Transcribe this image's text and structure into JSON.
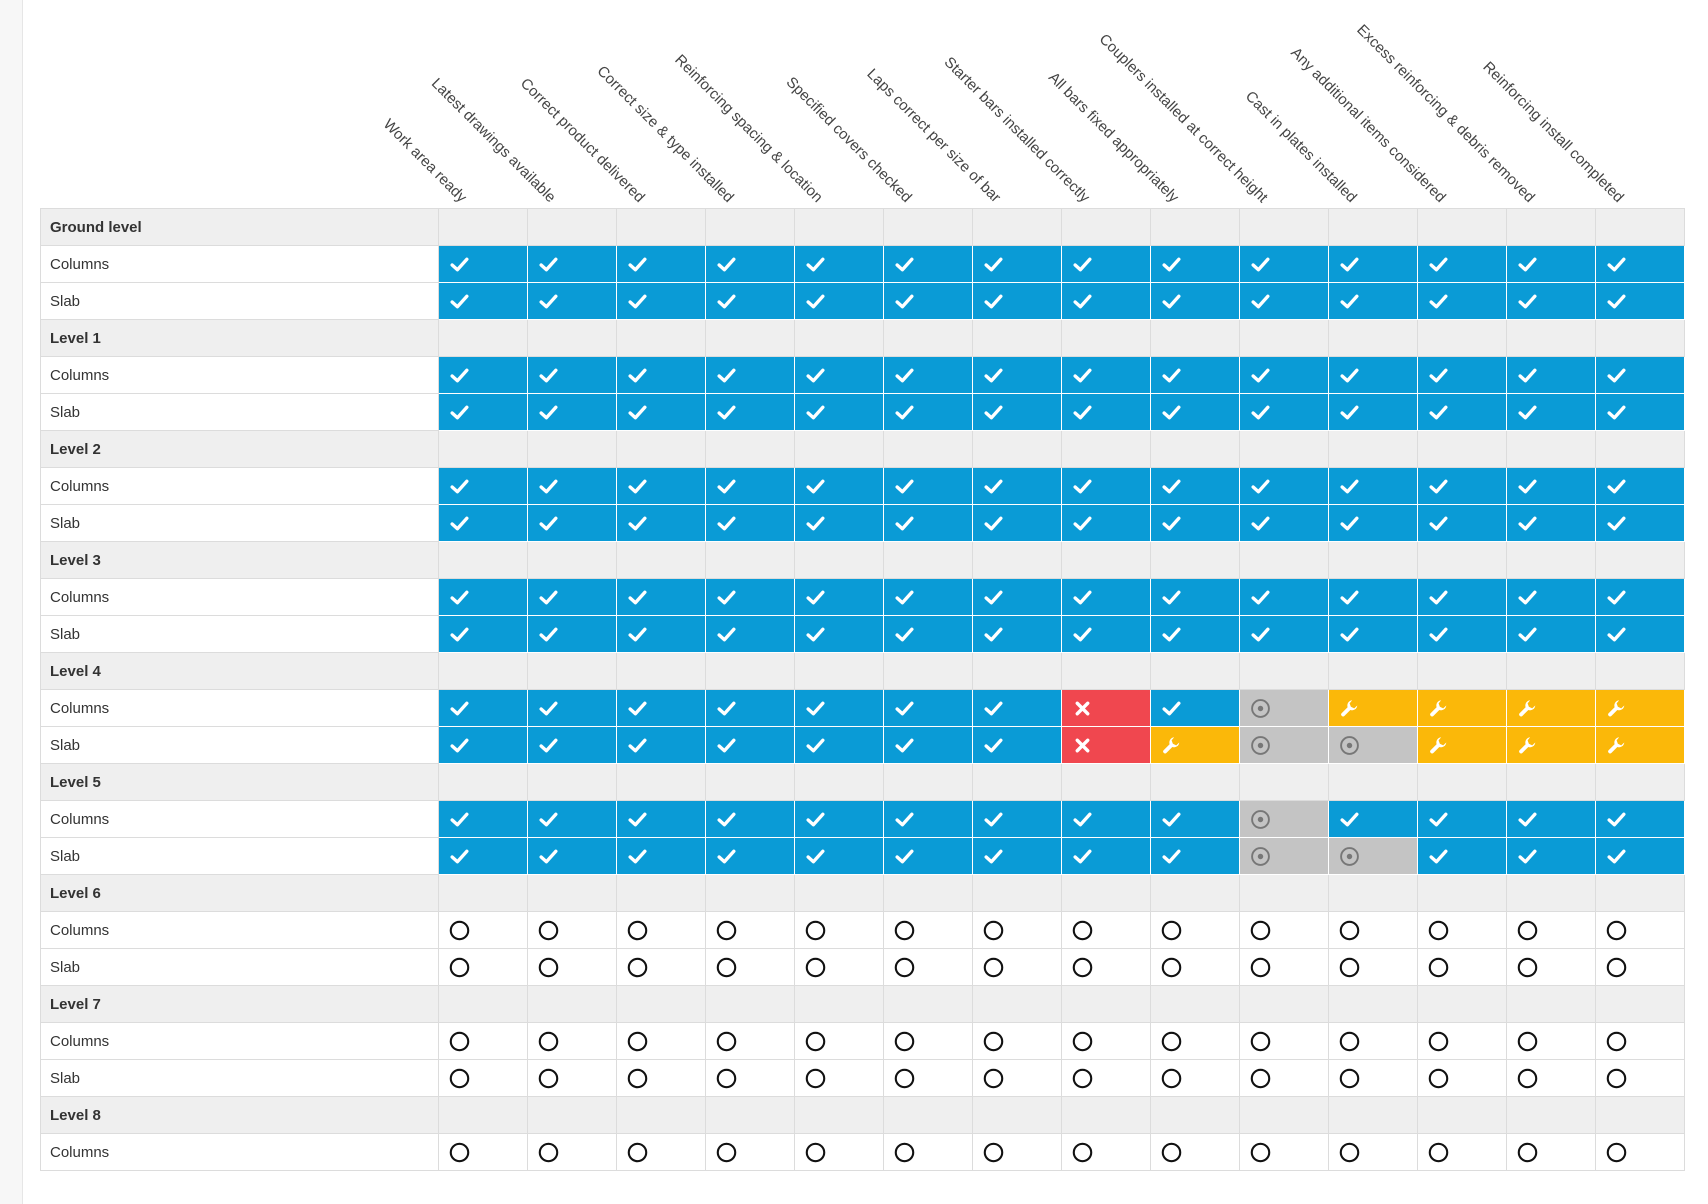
{
  "colors": {
    "done": "#0a9bd6",
    "fail": "#f0474f",
    "warn": "#fbb809",
    "na": "#c4c4c4",
    "group_bg": "#efefef"
  },
  "status_icons": {
    "done": "check-icon",
    "fail": "cross-icon",
    "warn": "wrench-icon",
    "na": "target-icon",
    "pending": "empty-circle-icon"
  },
  "columns": [
    "Work area ready",
    "Latest drawings available",
    "Correct product delivered",
    "Correct size & type installed",
    "Reinforcing spacing & location",
    "Specified covers checked",
    "Laps correct per size of bar",
    "Starter bars installed correctly",
    "All bars fixed appropriately",
    "Couplers installed at correct height",
    "Cast in plates installed",
    "Any additional items considered",
    "Excess reinforcing & debris removed",
    "Reinforcing install completed"
  ],
  "groups": [
    {
      "name": "Ground level",
      "rows": [
        {
          "label": "Columns",
          "status": [
            "done",
            "done",
            "done",
            "done",
            "done",
            "done",
            "done",
            "done",
            "done",
            "done",
            "done",
            "done",
            "done",
            "done"
          ]
        },
        {
          "label": "Slab",
          "status": [
            "done",
            "done",
            "done",
            "done",
            "done",
            "done",
            "done",
            "done",
            "done",
            "done",
            "done",
            "done",
            "done",
            "done"
          ]
        }
      ]
    },
    {
      "name": "Level 1",
      "rows": [
        {
          "label": "Columns",
          "status": [
            "done",
            "done",
            "done",
            "done",
            "done",
            "done",
            "done",
            "done",
            "done",
            "done",
            "done",
            "done",
            "done",
            "done"
          ]
        },
        {
          "label": "Slab",
          "status": [
            "done",
            "done",
            "done",
            "done",
            "done",
            "done",
            "done",
            "done",
            "done",
            "done",
            "done",
            "done",
            "done",
            "done"
          ]
        }
      ]
    },
    {
      "name": "Level 2",
      "rows": [
        {
          "label": "Columns",
          "status": [
            "done",
            "done",
            "done",
            "done",
            "done",
            "done",
            "done",
            "done",
            "done",
            "done",
            "done",
            "done",
            "done",
            "done"
          ]
        },
        {
          "label": "Slab",
          "status": [
            "done",
            "done",
            "done",
            "done",
            "done",
            "done",
            "done",
            "done",
            "done",
            "done",
            "done",
            "done",
            "done",
            "done"
          ]
        }
      ]
    },
    {
      "name": "Level 3",
      "rows": [
        {
          "label": "Columns",
          "status": [
            "done",
            "done",
            "done",
            "done",
            "done",
            "done",
            "done",
            "done",
            "done",
            "done",
            "done",
            "done",
            "done",
            "done"
          ]
        },
        {
          "label": "Slab",
          "status": [
            "done",
            "done",
            "done",
            "done",
            "done",
            "done",
            "done",
            "done",
            "done",
            "done",
            "done",
            "done",
            "done",
            "done"
          ]
        }
      ]
    },
    {
      "name": "Level 4",
      "rows": [
        {
          "label": "Columns",
          "status": [
            "done",
            "done",
            "done",
            "done",
            "done",
            "done",
            "done",
            "fail",
            "done",
            "na",
            "warn",
            "warn",
            "warn",
            "warn"
          ]
        },
        {
          "label": "Slab",
          "status": [
            "done",
            "done",
            "done",
            "done",
            "done",
            "done",
            "done",
            "fail",
            "warn",
            "na",
            "na",
            "warn",
            "warn",
            "warn"
          ]
        }
      ]
    },
    {
      "name": "Level 5",
      "rows": [
        {
          "label": "Columns",
          "status": [
            "done",
            "done",
            "done",
            "done",
            "done",
            "done",
            "done",
            "done",
            "done",
            "na",
            "done",
            "done",
            "done",
            "done"
          ]
        },
        {
          "label": "Slab",
          "status": [
            "done",
            "done",
            "done",
            "done",
            "done",
            "done",
            "done",
            "done",
            "done",
            "na",
            "na",
            "done",
            "done",
            "done"
          ]
        }
      ]
    },
    {
      "name": "Level 6",
      "rows": [
        {
          "label": "Columns",
          "status": [
            "pending",
            "pending",
            "pending",
            "pending",
            "pending",
            "pending",
            "pending",
            "pending",
            "pending",
            "pending",
            "pending",
            "pending",
            "pending",
            "pending"
          ]
        },
        {
          "label": "Slab",
          "status": [
            "pending",
            "pending",
            "pending",
            "pending",
            "pending",
            "pending",
            "pending",
            "pending",
            "pending",
            "pending",
            "pending",
            "pending",
            "pending",
            "pending"
          ]
        }
      ]
    },
    {
      "name": "Level 7",
      "rows": [
        {
          "label": "Columns",
          "status": [
            "pending",
            "pending",
            "pending",
            "pending",
            "pending",
            "pending",
            "pending",
            "pending",
            "pending",
            "pending",
            "pending",
            "pending",
            "pending",
            "pending"
          ]
        },
        {
          "label": "Slab",
          "status": [
            "pending",
            "pending",
            "pending",
            "pending",
            "pending",
            "pending",
            "pending",
            "pending",
            "pending",
            "pending",
            "pending",
            "pending",
            "pending",
            "pending"
          ]
        }
      ]
    },
    {
      "name": "Level 8",
      "rows": [
        {
          "label": "Columns",
          "status": [
            "pending",
            "pending",
            "pending",
            "pending",
            "pending",
            "pending",
            "pending",
            "pending",
            "pending",
            "pending",
            "pending",
            "pending",
            "pending",
            "pending"
          ]
        }
      ]
    }
  ]
}
